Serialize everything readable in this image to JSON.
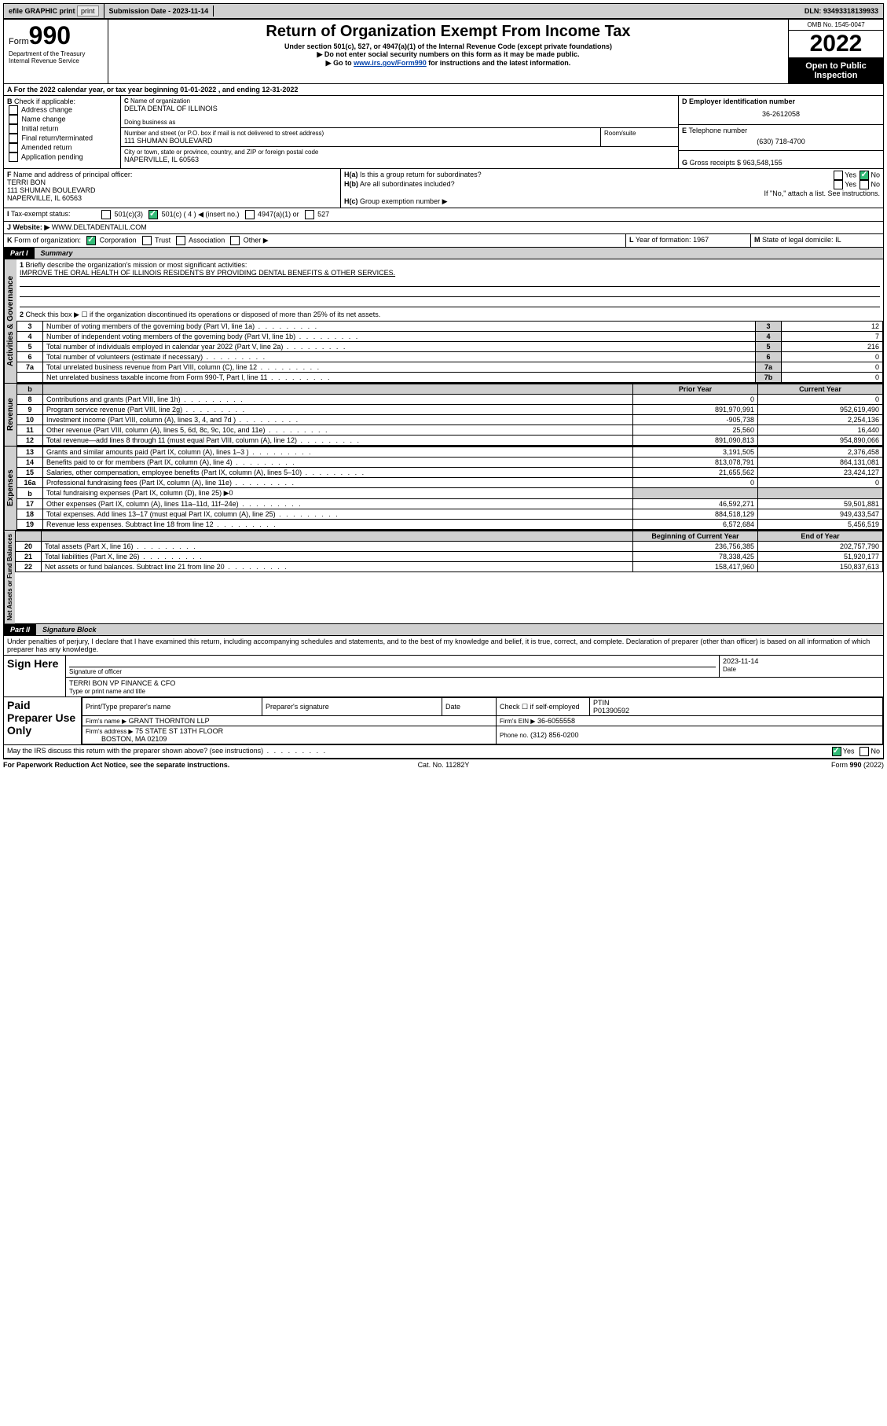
{
  "topbar": {
    "efile": "efile GRAPHIC print",
    "submission_label": "Submission Date - ",
    "submission_date": "2023-11-14",
    "dln_label": "DLN: ",
    "dln": "93493318139933"
  },
  "header": {
    "form_prefix": "Form",
    "form_number": "990",
    "dept": "Department of the Treasury",
    "irs": "Internal Revenue Service",
    "title": "Return of Organization Exempt From Income Tax",
    "subtitle": "Under section 501(c), 527, or 4947(a)(1) of the Internal Revenue Code (except private foundations)",
    "warn1": "▶ Do not enter social security numbers on this form as it may be made public.",
    "warn2_pre": "▶ Go to ",
    "warn2_link": "www.irs.gov/Form990",
    "warn2_post": " for instructions and the latest information.",
    "omb": "OMB No. 1545-0047",
    "year": "2022",
    "inspect": "Open to Public Inspection"
  },
  "periodA": {
    "text": "For the 2022 calendar year, or tax year beginning ",
    "begin": "01-01-2022",
    "mid": " , and ending ",
    "end": "12-31-2022"
  },
  "B": {
    "label": "Check if applicable:",
    "opts": [
      "Address change",
      "Name change",
      "Initial return",
      "Final return/terminated",
      "Amended return",
      "Application pending"
    ]
  },
  "C": {
    "name_label": "Name of organization",
    "name": "DELTA DENTAL OF ILLINOIS",
    "dba_label": "Doing business as",
    "street_label": "Number and street (or P.O. box if mail is not delivered to street address)",
    "room_label": "Room/suite",
    "street": "111 SHUMAN BOULEVARD",
    "city_label": "City or town, state or province, country, and ZIP or foreign postal code",
    "city": "NAPERVILLE, IL  60563"
  },
  "D": {
    "label": "Employer identification number",
    "value": "36-2612058"
  },
  "E": {
    "label": "Telephone number",
    "value": "(630) 718-4700"
  },
  "G": {
    "label": "Gross receipts $",
    "value": "963,548,155"
  },
  "F": {
    "label": "Name and address of principal officer:",
    "name": "TERRI BON",
    "street": "111 SHUMAN BOULEVARD",
    "city": "NAPERVILLE, IL  60563"
  },
  "H": {
    "a": "Is this a group return for subordinates?",
    "b": "Are all subordinates included?",
    "b_note": "If \"No,\" attach a list. See instructions.",
    "c": "Group exemption number ▶",
    "yes": "Yes",
    "no": "No"
  },
  "I": {
    "label": "Tax-exempt status:",
    "opts": [
      "501(c)(3)",
      "501(c) ( 4 ) ◀ (insert no.)",
      "4947(a)(1) or",
      "527"
    ]
  },
  "J": {
    "label": "Website: ▶",
    "value": "WWW.DELTADENTALIL.COM"
  },
  "K": {
    "label": "Form of organization:",
    "opts": [
      "Corporation",
      "Trust",
      "Association",
      "Other ▶"
    ]
  },
  "L": {
    "label": "Year of formation:",
    "value": "1967"
  },
  "M": {
    "label": "State of legal domicile:",
    "value": "IL"
  },
  "part1": {
    "label": "Part I",
    "title": "Summary"
  },
  "mission": {
    "q": "Briefly describe the organization's mission or most significant activities:",
    "a": "IMPROVE THE ORAL HEALTH OF ILLINOIS RESIDENTS BY PROVIDING DENTAL BENEFITS & OTHER SERVICES."
  },
  "line2": "Check this box ▶ ☐ if the organization discontinued its operations or disposed of more than 25% of its net assets.",
  "governance_rows": [
    {
      "n": "3",
      "t": "Number of voting members of the governing body (Part VI, line 1a)",
      "box": "3",
      "v": "12"
    },
    {
      "n": "4",
      "t": "Number of independent voting members of the governing body (Part VI, line 1b)",
      "box": "4",
      "v": "7"
    },
    {
      "n": "5",
      "t": "Total number of individuals employed in calendar year 2022 (Part V, line 2a)",
      "box": "5",
      "v": "216"
    },
    {
      "n": "6",
      "t": "Total number of volunteers (estimate if necessary)",
      "box": "6",
      "v": "0"
    },
    {
      "n": "7a",
      "t": "Total unrelated business revenue from Part VIII, column (C), line 12",
      "box": "7a",
      "v": "0"
    },
    {
      "n": "",
      "t": "Net unrelated business taxable income from Form 990-T, Part I, line 11",
      "box": "7b",
      "v": "0"
    }
  ],
  "col_headers": {
    "b_head": "b",
    "prior": "Prior Year",
    "current": "Current Year"
  },
  "revenue_rows": [
    {
      "n": "8",
      "t": "Contributions and grants (Part VIII, line 1h)",
      "p": "0",
      "c": "0"
    },
    {
      "n": "9",
      "t": "Program service revenue (Part VIII, line 2g)",
      "p": "891,970,991",
      "c": "952,619,490"
    },
    {
      "n": "10",
      "t": "Investment income (Part VIII, column (A), lines 3, 4, and 7d )",
      "p": "-905,738",
      "c": "2,254,136"
    },
    {
      "n": "11",
      "t": "Other revenue (Part VIII, column (A), lines 5, 6d, 8c, 9c, 10c, and 11e)",
      "p": "25,560",
      "c": "16,440"
    },
    {
      "n": "12",
      "t": "Total revenue—add lines 8 through 11 (must equal Part VIII, column (A), line 12)",
      "p": "891,090,813",
      "c": "954,890,066"
    }
  ],
  "expense_rows": [
    {
      "n": "13",
      "t": "Grants and similar amounts paid (Part IX, column (A), lines 1–3 )",
      "p": "3,191,505",
      "c": "2,376,458"
    },
    {
      "n": "14",
      "t": "Benefits paid to or for members (Part IX, column (A), line 4)",
      "p": "813,078,791",
      "c": "864,131,081"
    },
    {
      "n": "15",
      "t": "Salaries, other compensation, employee benefits (Part IX, column (A), lines 5–10)",
      "p": "21,655,562",
      "c": "23,424,127"
    },
    {
      "n": "16a",
      "t": "Professional fundraising fees (Part IX, column (A), line 11e)",
      "p": "0",
      "c": "0"
    },
    {
      "n": "b",
      "t": "Total fundraising expenses (Part IX, column (D), line 25) ▶0",
      "p": "",
      "c": "",
      "grey": true
    },
    {
      "n": "17",
      "t": "Other expenses (Part IX, column (A), lines 11a–11d, 11f–24e)",
      "p": "46,592,271",
      "c": "59,501,881"
    },
    {
      "n": "18",
      "t": "Total expenses. Add lines 13–17 (must equal Part IX, column (A), line 25)",
      "p": "884,518,129",
      "c": "949,433,547"
    },
    {
      "n": "19",
      "t": "Revenue less expenses. Subtract line 18 from line 12",
      "p": "6,572,684",
      "c": "5,456,519"
    }
  ],
  "netassets_headers": {
    "begin": "Beginning of Current Year",
    "end": "End of Year"
  },
  "netassets_rows": [
    {
      "n": "20",
      "t": "Total assets (Part X, line 16)",
      "p": "236,756,385",
      "c": "202,757,790"
    },
    {
      "n": "21",
      "t": "Total liabilities (Part X, line 26)",
      "p": "78,338,425",
      "c": "51,920,177"
    },
    {
      "n": "22",
      "t": "Net assets or fund balances. Subtract line 21 from line 20",
      "p": "158,417,960",
      "c": "150,837,613"
    }
  ],
  "part2": {
    "label": "Part II",
    "title": "Signature Block"
  },
  "penalties": "Under penalties of perjury, I declare that I have examined this return, including accompanying schedules and statements, and to the best of my knowledge and belief, it is true, correct, and complete. Declaration of preparer (other than officer) is based on all information of which preparer has any knowledge.",
  "sign": {
    "here": "Sign Here",
    "sig_officer": "Signature of officer",
    "date": "Date",
    "date_val": "2023-11-14",
    "officer": "TERRI BON VP FINANCE & CFO",
    "name_title": "Type or print name and title"
  },
  "preparer": {
    "title": "Paid Preparer Use Only",
    "name_hdr": "Print/Type preparer's name",
    "sig_hdr": "Preparer's signature",
    "date_hdr": "Date",
    "check_label": "Check ☐ if self-employed",
    "ptin_label": "PTIN",
    "ptin": "P01390592",
    "firm_name_label": "Firm's name   ▶",
    "firm_name": "GRANT THORNTON LLP",
    "firm_ein_label": "Firm's EIN ▶",
    "firm_ein": "36-6055558",
    "firm_addr_label": "Firm's address ▶",
    "firm_addr1": "75 STATE ST 13TH FLOOR",
    "firm_addr2": "BOSTON, MA  02109",
    "phone_label": "Phone no.",
    "phone": "(312) 856-0200"
  },
  "discuss": "May the IRS discuss this return with the preparer shown above? (see instructions)",
  "footer": {
    "pra": "For Paperwork Reduction Act Notice, see the separate instructions.",
    "cat": "Cat. No. 11282Y",
    "form": "Form 990 (2022)"
  },
  "vlabels": {
    "gov": "Activities & Governance",
    "rev": "Revenue",
    "exp": "Expenses",
    "net": "Net Assets or Fund Balances"
  }
}
